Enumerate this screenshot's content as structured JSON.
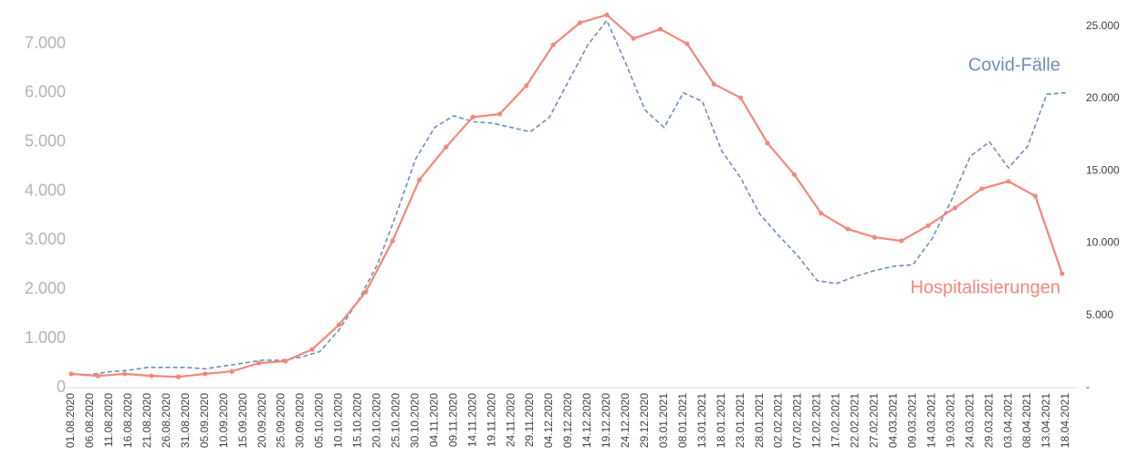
{
  "chart_data": {
    "type": "line",
    "x": [
      "01.08.2020",
      "06.08.2020",
      "11.08.2020",
      "16.08.2020",
      "21.08.2020",
      "26.08.2020",
      "31.08.2020",
      "05.09.2020",
      "10.09.2020",
      "15.09.2020",
      "20.09.2020",
      "25.09.2020",
      "30.09.2020",
      "05.10.2020",
      "10.10.2020",
      "15.10.2020",
      "20.10.2020",
      "25.10.2020",
      "30.10.2020",
      "04.11.2020",
      "09.11.2020",
      "14.11.2020",
      "19.11.2020",
      "24.11.2020",
      "29.11.2020",
      "04.12.2020",
      "09.12.2020",
      "14.12.2020",
      "19.12.2020",
      "24.12.2020",
      "29.12.2020",
      "03.01.2021",
      "08.01.2021",
      "13.01.2021",
      "18.01.2021",
      "23.01.2021",
      "28.01.2021",
      "02.02.2021",
      "07.02.2021",
      "12.02.2021",
      "17.02.2021",
      "22.02.2021",
      "27.02.2021",
      "04.03.2021",
      "09.03.2021",
      "14.03.2021",
      "19.03.2021",
      "24.03.2021",
      "29.03.2021",
      "03.04.2021",
      "08.04.2021",
      "13.04.2021",
      "18.04.2021"
    ],
    "series": [
      {
        "name": "Covid-Fälle",
        "color": "#6f8fbf",
        "axis": "y2",
        "dashed": true,
        "values": [
          900,
          900,
          1100,
          1200,
          1400,
          1400,
          1400,
          1300,
          1500,
          1700,
          1900,
          1900,
          2100,
          2500,
          4000,
          6000,
          8500,
          12000,
          15800,
          18000,
          18800,
          18400,
          18300,
          18000,
          17700,
          18700,
          21200,
          23700,
          25400,
          22400,
          19200,
          18000,
          20400,
          19800,
          16400,
          14500,
          12000,
          10500,
          9100,
          7400,
          7200,
          7700,
          8100,
          8400,
          8500,
          10300,
          12900,
          16000,
          17000,
          15200,
          16700,
          20300,
          20400
        ]
      },
      {
        "name": "Hospitalisierungen",
        "color": "#f4877a",
        "axis": "y",
        "markers": true,
        "x": [
          "01.08.2020",
          "08.08.2020",
          "15.08.2020",
          "22.08.2020",
          "29.08.2020",
          "05.09.2020",
          "12.09.2020",
          "19.09.2020",
          "26.09.2020",
          "03.10.2020",
          "10.10.2020",
          "17.10.2020",
          "24.10.2020",
          "31.10.2020",
          "07.11.2020",
          "14.11.2020",
          "21.11.2020",
          "28.11.2020",
          "05.12.2020",
          "12.12.2020",
          "19.12.2020",
          "26.12.2020",
          "02.01.2021",
          "09.01.2021",
          "16.01.2021",
          "23.01.2021",
          "30.01.2021",
          "06.02.2021",
          "13.02.2021",
          "20.02.2021",
          "27.02.2021",
          "06.03.2021",
          "13.03.2021",
          "20.03.2021",
          "27.03.2021",
          "03.04.2021",
          "10.04.2021",
          "17.04.2021"
        ],
        "values": [
          280,
          240,
          280,
          240,
          220,
          280,
          330,
          500,
          540,
          780,
          1280,
          1950,
          2990,
          4230,
          4900,
          5510,
          5570,
          6150,
          6980,
          7430,
          7590,
          7110,
          7300,
          7000,
          6180,
          5900,
          4980,
          4340,
          3550,
          3230,
          3060,
          2990,
          3300,
          3660,
          4050,
          4200,
          3900,
          2320
        ]
      }
    ],
    "ylim": [
      0,
      7800
    ],
    "yticks": [
      0,
      {
        "value": 1000,
        "label": "1.000"
      },
      {
        "value": 2000,
        "label": "2.000"
      },
      {
        "value": 3000,
        "label": "3.000"
      },
      {
        "value": 4000,
        "label": "4.000"
      },
      {
        "value": 5000,
        "label": "5.000"
      },
      {
        "value": 6000,
        "label": "6.000"
      },
      {
        "value": 7000,
        "label": "7.000"
      }
    ],
    "y2lim": [
      0,
      26500
    ],
    "y2ticks": [
      {
        "value": 0,
        "label": "-"
      },
      {
        "value": 5000,
        "label": "5.000"
      },
      {
        "value": 10000,
        "label": "10.000"
      },
      {
        "value": 15000,
        "label": "15.000"
      },
      {
        "value": 20000,
        "label": "20.000"
      },
      {
        "value": 25000,
        "label": "25.000"
      }
    ]
  }
}
